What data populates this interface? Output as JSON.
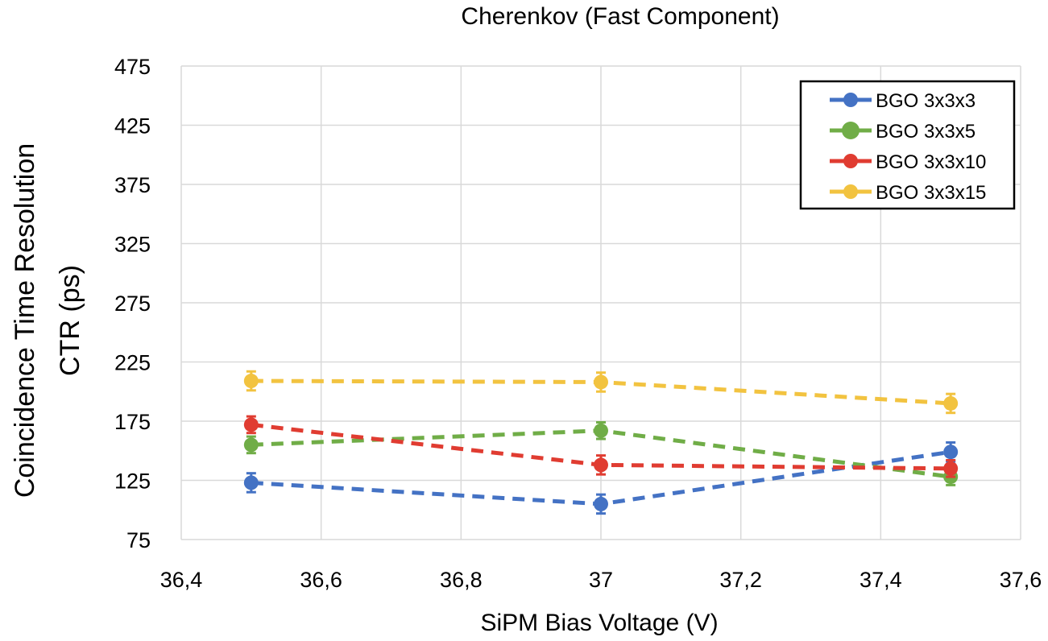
{
  "chart_data": {
    "type": "line",
    "title": "Cherenkov (Fast Component)",
    "xlabel": "SiPM Bias Voltage (V)",
    "ylabel_line1": "Coincidence Time Resolution",
    "ylabel_line2": "CTR (ps)",
    "xlim": [
      36.4,
      37.6
    ],
    "ylim": [
      75,
      475
    ],
    "x_ticks": [
      36.4,
      36.6,
      36.8,
      37.0,
      37.2,
      37.4,
      37.6
    ],
    "x_tick_labels": [
      "36,4",
      "36,6",
      "36,8",
      "37",
      "37,2",
      "37,4",
      "37,6"
    ],
    "y_ticks": [
      75,
      125,
      175,
      225,
      275,
      325,
      375,
      425,
      475
    ],
    "y_tick_labels": [
      "75",
      "125",
      "175",
      "225",
      "275",
      "325",
      "375",
      "425",
      "475"
    ],
    "grid": true,
    "legend_position": "top-right",
    "line_style": "dashed",
    "x": [
      36.5,
      37.0,
      37.5
    ],
    "series": [
      {
        "name": "BGO 3x3x3",
        "color": "#4472C4",
        "values": [
          123,
          105,
          149
        ],
        "errors": [
          8,
          8,
          8
        ]
      },
      {
        "name": "BGO 3x3x5",
        "color": "#70AD47",
        "values": [
          155,
          167,
          128
        ],
        "errors": [
          7,
          7,
          7
        ]
      },
      {
        "name": "BGO 3x3x10",
        "color": "#E03C31",
        "values": [
          172,
          138,
          135
        ],
        "errors": [
          7,
          8,
          7
        ]
      },
      {
        "name": "BGO 3x3x15",
        "color": "#F2C340",
        "values": [
          209,
          208,
          190
        ],
        "errors": [
          8,
          8,
          8
        ]
      }
    ]
  }
}
